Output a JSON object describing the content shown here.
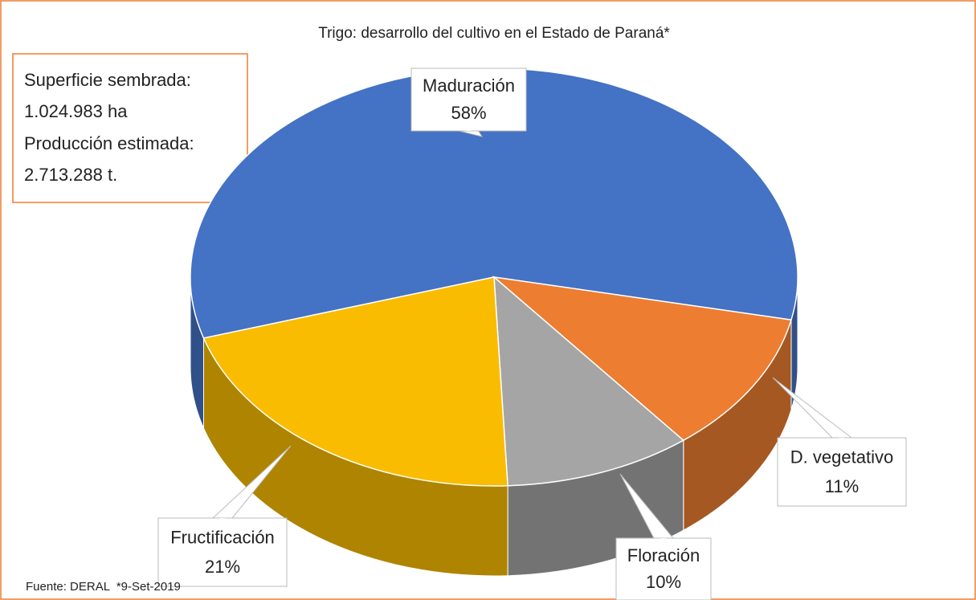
{
  "chart_data": {
    "type": "pie3d",
    "title": "Trigo: desarrollo del cultivo en el Estado de Paraná*",
    "categories": [
      "Maduración",
      "D. vegetativo",
      "Floración",
      "Fructificación"
    ],
    "values": [
      58,
      11,
      10,
      21
    ],
    "value_labels": [
      "58%",
      "11%",
      "10%",
      "21%"
    ],
    "colors": [
      "#4472c4",
      "#ed7d31",
      "#a5a5a5",
      "#f9bc00"
    ],
    "annotations": [
      "Superficie sembrada:",
      "1.024.983 ha",
      "Producción estimada:",
      "2.713.288 t."
    ],
    "source": "Fuente: DERAL  *9-Set-2019"
  }
}
